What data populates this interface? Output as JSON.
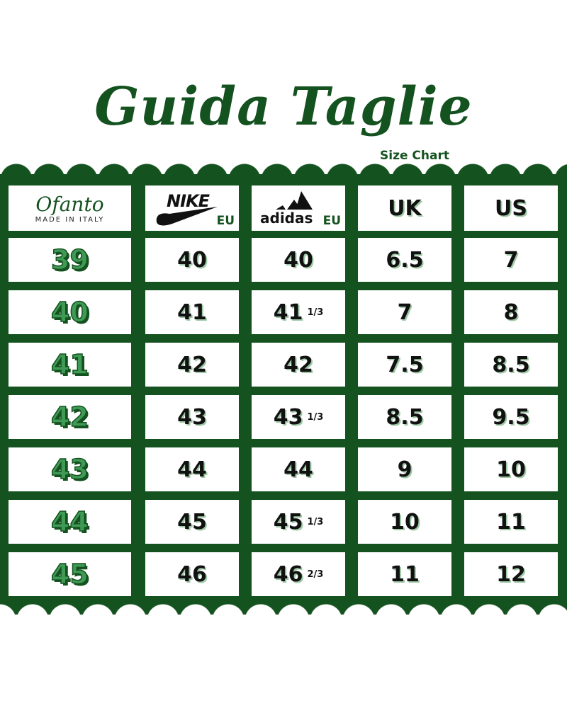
{
  "title": "Guida Taglie",
  "subtitle": "Size Chart",
  "colors": {
    "green": "#14521f",
    "accent_light": "#3f9a55"
  },
  "chart_data": {
    "type": "table",
    "headers": [
      {
        "brand": "Ofanto",
        "tagline": "MADE IN ITALY"
      },
      {
        "brand": "NIKE",
        "unit": "EU"
      },
      {
        "brand": "adidas",
        "unit": "EU"
      },
      {
        "label": "UK"
      },
      {
        "label": "US"
      }
    ],
    "rows": [
      {
        "ofanto": "39",
        "nike": "40",
        "adidas": "40",
        "adidas_frac": "",
        "uk": "6.5",
        "us": "7"
      },
      {
        "ofanto": "40",
        "nike": "41",
        "adidas": "41",
        "adidas_frac": "1/3",
        "uk": "7",
        "us": "8"
      },
      {
        "ofanto": "41",
        "nike": "42",
        "adidas": "42",
        "adidas_frac": "",
        "uk": "7.5",
        "us": "8.5"
      },
      {
        "ofanto": "42",
        "nike": "43",
        "adidas": "43",
        "adidas_frac": "1/3",
        "uk": "8.5",
        "us": "9.5"
      },
      {
        "ofanto": "43",
        "nike": "44",
        "adidas": "44",
        "adidas_frac": "",
        "uk": "9",
        "us": "10"
      },
      {
        "ofanto": "44",
        "nike": "45",
        "adidas": "45",
        "adidas_frac": "1/3",
        "uk": "10",
        "us": "11"
      },
      {
        "ofanto": "45",
        "nike": "46",
        "adidas": "46",
        "adidas_frac": "2/3",
        "uk": "11",
        "us": "12"
      }
    ]
  }
}
